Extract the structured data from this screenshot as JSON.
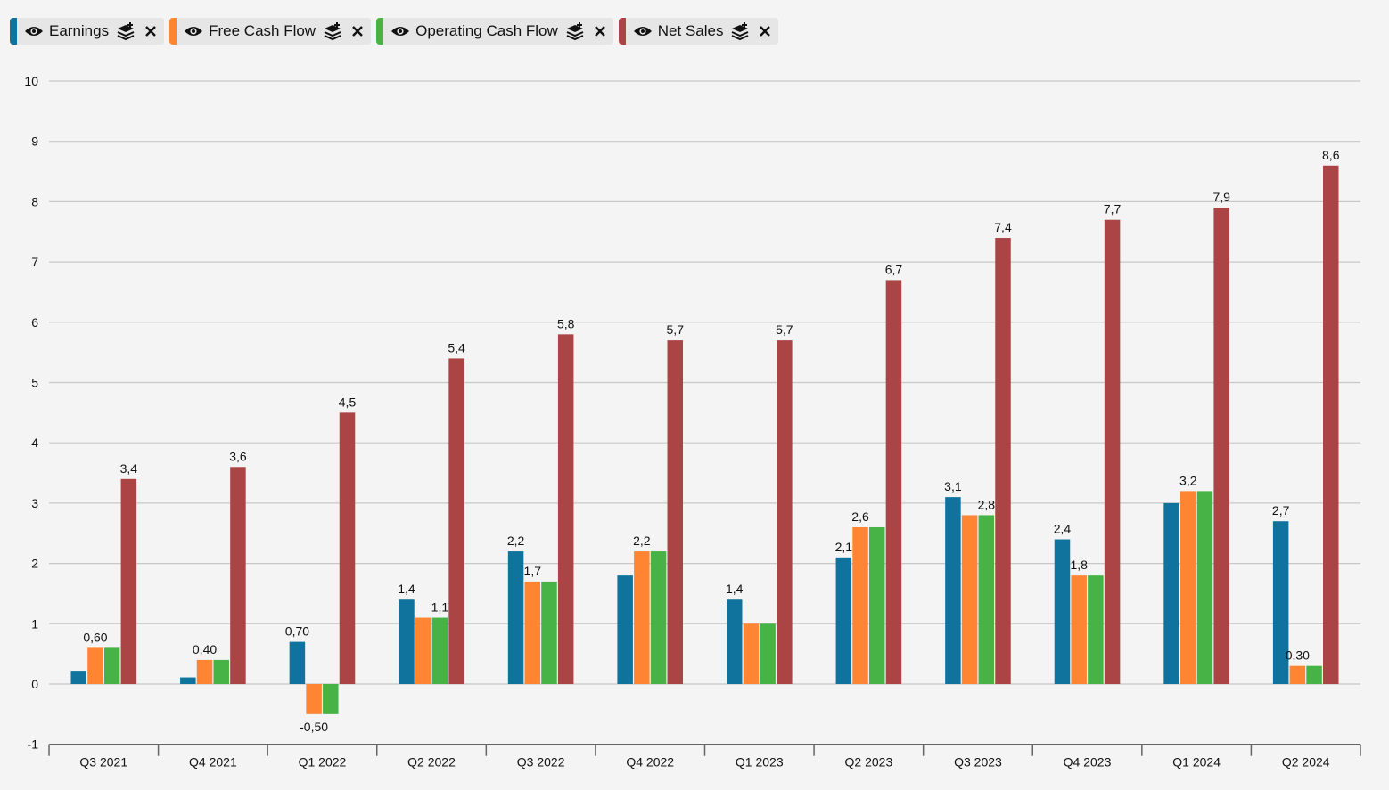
{
  "legend": [
    {
      "label": "Earnings",
      "color": "#0f739e",
      "eye_icon": "eye-icon",
      "stack_icon": "stack-icon",
      "close_icon": "close-icon"
    },
    {
      "label": "Free Cash Flow",
      "color": "#ff8533",
      "eye_icon": "eye-icon",
      "stack_icon": "stack-icon",
      "close_icon": "close-icon"
    },
    {
      "label": "Operating Cash Flow",
      "color": "#47b347",
      "eye_icon": "eye-icon",
      "stack_icon": "stack-icon",
      "close_icon": "close-icon"
    },
    {
      "label": "Net Sales",
      "color": "#ab4545",
      "eye_icon": "eye-icon",
      "stack_icon": "stack-icon",
      "close_icon": "close-icon"
    }
  ],
  "chart_data": {
    "type": "bar",
    "title": "",
    "xlabel": "",
    "ylabel": "",
    "ylim": [
      -1,
      10
    ],
    "yticks": [
      -1,
      0,
      1,
      2,
      3,
      4,
      5,
      6,
      7,
      8,
      9,
      10
    ],
    "grid": true,
    "legend_position": "top-left",
    "categories": [
      "Q3 2021",
      "Q4 2021",
      "Q1 2022",
      "Q2 2022",
      "Q3 2022",
      "Q4 2022",
      "Q1 2023",
      "Q2 2023",
      "Q3 2023",
      "Q4 2023",
      "Q1 2024",
      "Q2 2024"
    ],
    "series": [
      {
        "name": "Earnings",
        "color": "#0f739e",
        "values": [
          0.22,
          0.11,
          0.7,
          1.4,
          2.2,
          1.8,
          1.4,
          2.1,
          3.1,
          2.4,
          3.0,
          2.7
        ],
        "labels": [
          "",
          "",
          "0,70",
          "1,4",
          "2,2",
          "",
          "1,4",
          "2,1",
          "3,1",
          "2,4",
          "",
          "2,7"
        ]
      },
      {
        "name": "Free Cash Flow",
        "color": "#ff8533",
        "values": [
          0.6,
          0.4,
          -0.5,
          1.1,
          1.7,
          2.2,
          1.0,
          2.6,
          2.8,
          1.8,
          3.2,
          0.3
        ],
        "labels": [
          "0,60",
          "0,40",
          "-0,50",
          "",
          "1,7",
          "2,2",
          "",
          "2,6",
          "",
          "1,8",
          "3,2",
          "0,30"
        ]
      },
      {
        "name": "Operating Cash Flow",
        "color": "#47b347",
        "values": [
          0.6,
          0.4,
          -0.5,
          1.1,
          1.7,
          2.2,
          1.0,
          2.6,
          2.8,
          1.8,
          3.2,
          0.3
        ],
        "labels": [
          "",
          "",
          "",
          "1,1",
          "",
          "",
          "",
          "",
          "2,8",
          "",
          "",
          ""
        ]
      },
      {
        "name": "Net Sales",
        "color": "#ab4545",
        "values": [
          3.4,
          3.6,
          4.5,
          5.4,
          5.8,
          5.7,
          5.7,
          6.7,
          7.4,
          7.7,
          7.9,
          8.6
        ],
        "labels": [
          "3,4",
          "3,6",
          "4,5",
          "5,4",
          "5,8",
          "5,7",
          "5,7",
          "6,7",
          "7,4",
          "7,7",
          "7,9",
          "8,6"
        ]
      }
    ]
  }
}
